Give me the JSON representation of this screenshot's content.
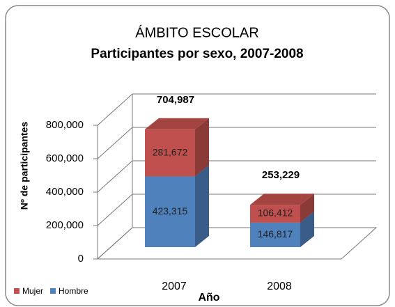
{
  "chart_data": {
    "type": "bar3d_stacked",
    "title": "ÁMBITO ESCOLAR",
    "subtitle": "Participantes por sexo, 2007-2008",
    "y_label": "Nº de participantes",
    "x_label": "Año",
    "categories": [
      "2007",
      "2008"
    ],
    "series": [
      {
        "name": "Hombre",
        "color": "#4f81bd",
        "values": [
          423315,
          146817
        ],
        "value_labels": [
          "423,315",
          "146,817"
        ]
      },
      {
        "name": "Mujer",
        "color": "#c0504d",
        "values": [
          281672,
          106412
        ],
        "value_labels": [
          "281,672",
          "106,412"
        ]
      }
    ],
    "totals": [
      704987,
      253229
    ],
    "total_labels": [
      "704,987",
      "253,229"
    ],
    "ylim": [
      0,
      800000
    ],
    "yticks": [
      0,
      {
        "value": 200000,
        "label": "200,000"
      },
      {
        "value": 400000,
        "label": "400,000"
      },
      {
        "value": 600000,
        "label": "600,000"
      },
      {
        "value": 800000,
        "label": "800,000"
      }
    ],
    "grid": true,
    "legend": "bottom-left"
  }
}
